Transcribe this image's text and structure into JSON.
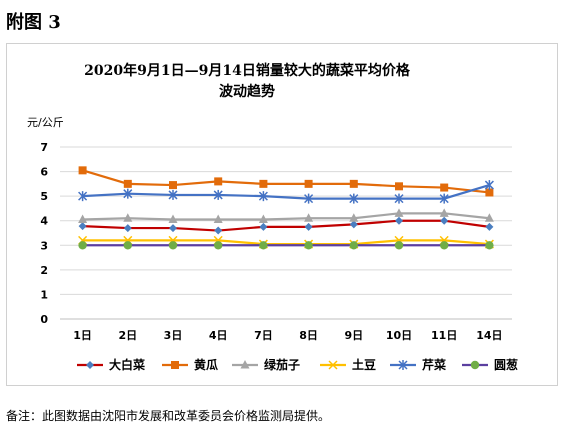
{
  "heading": "附图 3",
  "footnote": "备注：此图数据由沈阳市发展和改革委员会价格监测局提供。",
  "chart_data": {
    "type": "line",
    "title_line1": "2020年9月1日—9月14日销量较大的蔬菜平均价格",
    "title_line2": "波动趋势",
    "unit_label": "元/公斤",
    "categories": [
      "1日",
      "2日",
      "3日",
      "4日",
      "7日",
      "8日",
      "9日",
      "10日",
      "11日",
      "14日"
    ],
    "ylim": [
      0,
      7
    ],
    "yticks": [
      "0",
      "1",
      "2",
      "3",
      "4",
      "5",
      "6",
      "7"
    ],
    "grid": true,
    "legend_position": "bottom",
    "series": [
      {
        "name": "大白菜",
        "color": "#c00000",
        "marker": "diamond",
        "marker_color": "#4a7ec0",
        "values": [
          3.78,
          3.7,
          3.7,
          3.6,
          3.75,
          3.75,
          3.85,
          4.0,
          4.0,
          3.75
        ]
      },
      {
        "name": "黄瓜",
        "color": "#e26b0a",
        "marker": "square",
        "marker_color": "#e26b0a",
        "values": [
          6.05,
          5.5,
          5.45,
          5.6,
          5.5,
          5.5,
          5.5,
          5.4,
          5.35,
          5.15
        ]
      },
      {
        "name": "绿茄子",
        "color": "#a5a5a5",
        "marker": "triangle",
        "marker_color": "#a5a5a5",
        "values": [
          4.05,
          4.1,
          4.05,
          4.05,
          4.05,
          4.1,
          4.1,
          4.3,
          4.3,
          4.1
        ]
      },
      {
        "name": "土豆",
        "color": "#ffc000",
        "marker": "x",
        "marker_color": "#ffc000",
        "values": [
          3.2,
          3.2,
          3.2,
          3.2,
          3.05,
          3.05,
          3.05,
          3.2,
          3.2,
          3.05
        ]
      },
      {
        "name": "芹菜",
        "color": "#4472c4",
        "marker": "star",
        "marker_color": "#4472c4",
        "values": [
          5.0,
          5.1,
          5.05,
          5.05,
          5.0,
          4.9,
          4.9,
          4.9,
          4.9,
          5.45
        ]
      },
      {
        "name": "圆葱",
        "color": "#5b3fa0",
        "marker": "circle",
        "marker_color": "#70ad47",
        "values": [
          3.0,
          3.0,
          3.0,
          3.0,
          3.0,
          3.0,
          3.0,
          3.0,
          3.0,
          3.0
        ]
      }
    ]
  }
}
